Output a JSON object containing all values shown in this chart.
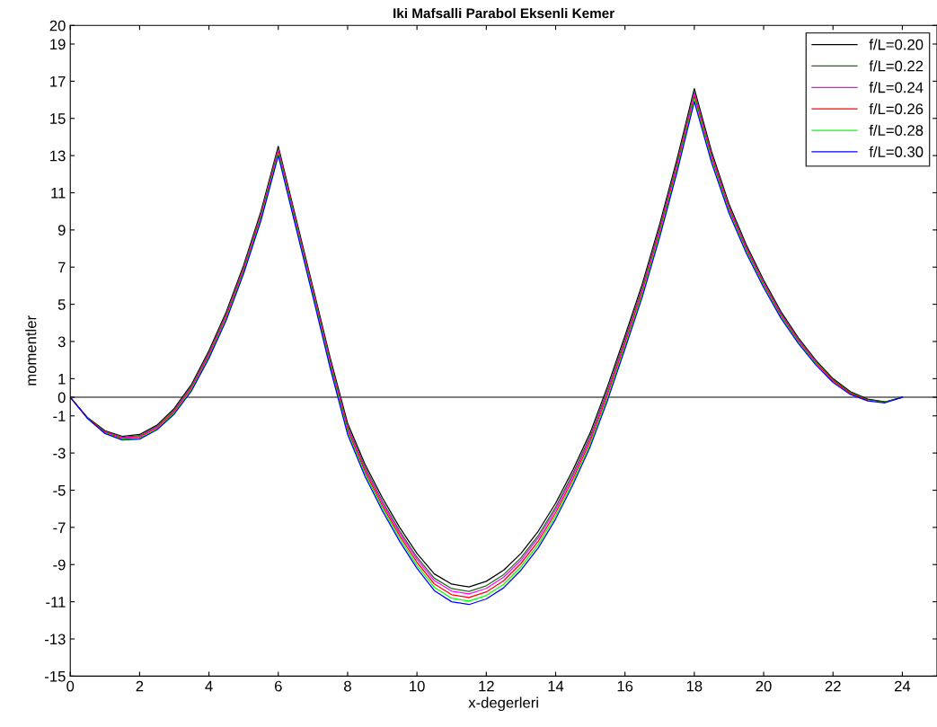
{
  "chart_data": {
    "type": "line",
    "title": "Iki Mafsalli Parabol Eksenli Kemer",
    "xlabel": "x-degerleri",
    "ylabel": "momentler",
    "x": [
      0,
      0.5,
      1,
      1.5,
      2,
      2.5,
      3,
      3.5,
      4,
      4.5,
      5,
      5.5,
      6,
      6.5,
      7,
      7.5,
      8,
      8.5,
      9,
      9.5,
      10,
      10.5,
      11,
      11.5,
      12,
      12.5,
      13,
      13.5,
      14,
      14.5,
      15,
      15.5,
      16,
      16.5,
      17,
      17.5,
      18,
      18.5,
      19,
      19.5,
      20,
      20.5,
      21,
      21.5,
      22,
      22.5,
      23,
      23.5,
      24
    ],
    "series": [
      {
        "name": "f/L=0.20",
        "color": "#000000",
        "values": [
          0,
          -1.1,
          -1.8,
          -2.1,
          -2.0,
          -1.5,
          -0.6,
          0.7,
          2.5,
          4.6,
          7.1,
          10.0,
          13.5,
          9.7,
          5.9,
          2.1,
          -1.4,
          -3.6,
          -5.4,
          -7.0,
          -8.4,
          -9.5,
          -10.05,
          -10.2,
          -9.9,
          -9.3,
          -8.4,
          -7.2,
          -5.7,
          -3.9,
          -1.9,
          0.6,
          3.3,
          6.1,
          9.3,
          12.8,
          16.6,
          13.2,
          10.4,
          8.2,
          6.3,
          4.6,
          3.2,
          2.0,
          1.0,
          0.3,
          -0.1,
          -0.25,
          0
        ]
      },
      {
        "name": "f/L=0.22",
        "color": "#1f6b1f",
        "values": [
          0,
          -1.11,
          -1.84,
          -2.15,
          -2.06,
          -1.56,
          -0.68,
          0.61,
          2.4,
          4.49,
          6.99,
          9.88,
          13.38,
          9.58,
          5.78,
          1.96,
          -1.55,
          -3.76,
          -5.58,
          -7.19,
          -8.6,
          -9.73,
          -10.29,
          -10.44,
          -10.14,
          -9.54,
          -8.63,
          -7.43,
          -5.91,
          -4.1,
          -2.09,
          0.41,
          3.13,
          5.93,
          9.13,
          12.63,
          16.43,
          13.05,
          10.28,
          8.09,
          6.2,
          4.51,
          3.13,
          1.94,
          0.95,
          0.26,
          -0.13,
          -0.26,
          0
        ]
      },
      {
        "name": "f/L=0.24",
        "color": "#ff00ff",
        "values": [
          null,
          null,
          -1.86,
          -2.18,
          -2.1,
          -1.6,
          -0.72,
          0.56,
          2.34,
          4.42,
          6.92,
          9.8,
          13.3,
          9.5,
          5.7,
          1.88,
          -1.64,
          -3.86,
          -5.68,
          -7.3,
          -8.72,
          -9.86,
          -10.43,
          -10.58,
          -10.28,
          -9.68,
          -8.76,
          -7.56,
          -6.04,
          -4.22,
          -2.2,
          0.3,
          3.02,
          5.82,
          9.02,
          12.52,
          16.32,
          12.96,
          10.2,
          8.02,
          6.14,
          4.46,
          3.08,
          1.9,
          null,
          null,
          null,
          null,
          null
        ]
      },
      {
        "name": "f/L=0.26",
        "color": "#ff0000",
        "values": [
          0,
          -1.13,
          -1.89,
          -2.22,
          -2.15,
          -1.65,
          -0.78,
          0.49,
          2.26,
          4.33,
          6.83,
          9.7,
          13.2,
          9.4,
          5.6,
          1.77,
          -1.76,
          -3.99,
          -5.82,
          -7.45,
          -8.88,
          -10.04,
          -10.62,
          -10.77,
          -10.47,
          -9.87,
          -8.94,
          -7.74,
          -6.21,
          -4.38,
          -2.35,
          0.15,
          2.88,
          5.68,
          8.88,
          12.38,
          16.18,
          12.84,
          10.1,
          7.93,
          6.06,
          4.39,
          3.02,
          1.85,
          0.88,
          0.21,
          -0.16,
          null,
          null
        ]
      },
      {
        "name": "f/L=0.28",
        "color": "#00ff00",
        "values": [
          null,
          null,
          -1.92,
          -2.26,
          -2.2,
          -1.7,
          -0.84,
          0.42,
          2.18,
          4.24,
          6.74,
          9.6,
          13.1,
          9.3,
          5.5,
          1.66,
          -1.88,
          -4.12,
          -5.96,
          -7.6,
          -9.04,
          -10.22,
          -10.81,
          -10.96,
          -10.66,
          -10.06,
          -9.12,
          -7.92,
          -6.38,
          -4.54,
          -2.5,
          0.0,
          2.74,
          5.54,
          8.74,
          12.24,
          16.04,
          12.72,
          10.0,
          7.84,
          5.98,
          4.32,
          2.96,
          1.8,
          null,
          null,
          null,
          null,
          null
        ]
      },
      {
        "name": "f/L=0.30",
        "color": "#0000ff",
        "values": [
          0,
          -1.15,
          -1.95,
          -2.3,
          -2.25,
          -1.75,
          -0.9,
          0.35,
          2.1,
          4.15,
          6.65,
          9.5,
          13.0,
          9.2,
          5.4,
          1.55,
          -2.0,
          -4.25,
          -6.1,
          -7.75,
          -9.2,
          -10.4,
          -11.0,
          -11.15,
          -10.85,
          -10.25,
          -9.3,
          -8.1,
          -6.55,
          -4.7,
          -2.65,
          -0.15,
          2.6,
          5.4,
          8.6,
          12.1,
          15.9,
          12.6,
          9.9,
          7.75,
          5.9,
          4.25,
          2.9,
          1.75,
          0.8,
          0.15,
          -0.2,
          -0.3,
          0
        ]
      }
    ],
    "xlim": [
      0,
      25
    ],
    "ylim": [
      -15,
      20
    ],
    "xticks": [
      0,
      2,
      4,
      6,
      8,
      10,
      12,
      14,
      16,
      18,
      20,
      22,
      24
    ],
    "yticks": [
      -15,
      -13,
      -11,
      -9,
      -7,
      -5,
      -3,
      -1,
      0,
      1,
      3,
      5,
      7,
      9,
      11,
      13,
      15,
      17,
      19,
      20
    ],
    "ref_lines": [
      {
        "axis": "y",
        "value": 0,
        "color": "#555555"
      }
    ],
    "legend": "top right",
    "grid": false
  }
}
